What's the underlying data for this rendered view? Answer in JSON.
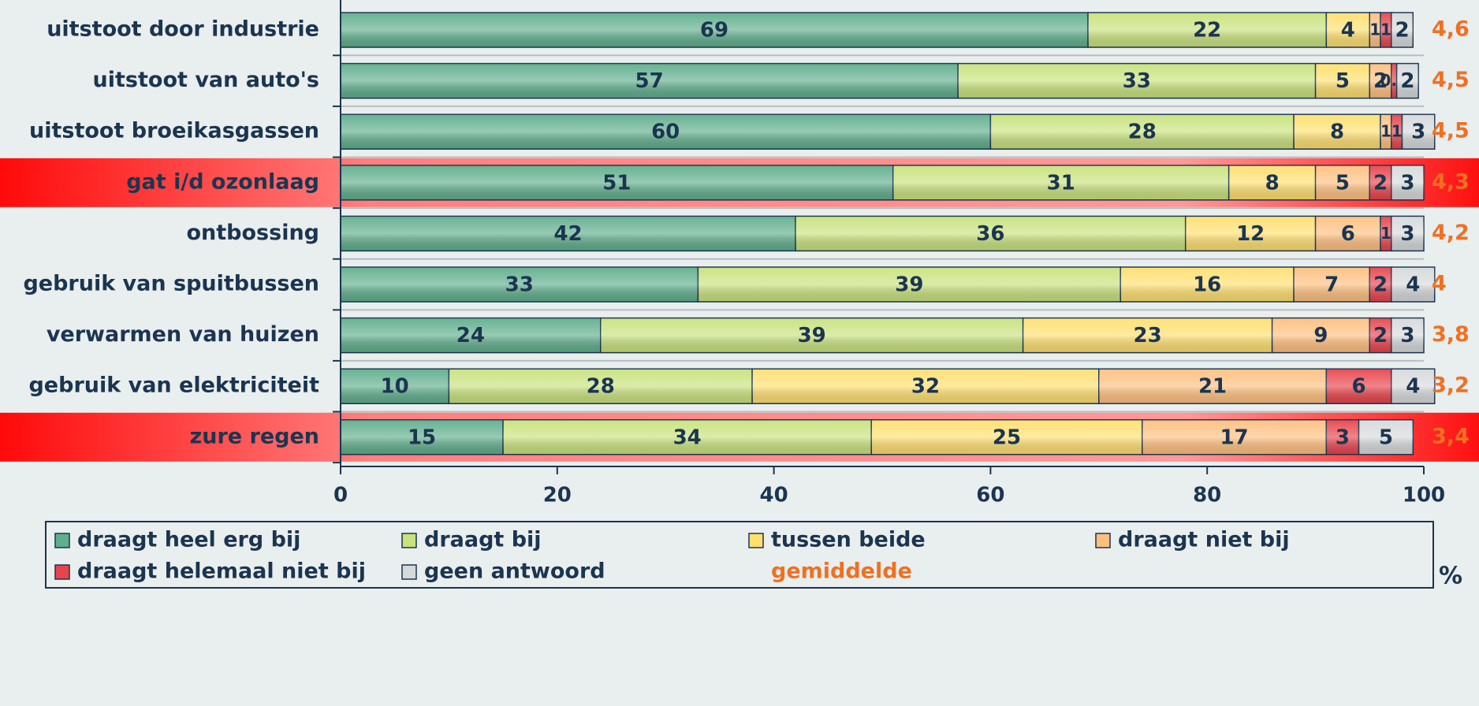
{
  "chart_data": {
    "type": "stacked_barh",
    "categories": [
      "uitstoot door industrie",
      "uitstoot van auto's",
      "uitstoot broeikasgassen",
      "gat i/d ozonlaag",
      "ontbossing",
      "gebruik van spuitbussen",
      "verwarmen van huizen",
      "gebruik van elektriciteit",
      "zure regen"
    ],
    "series": [
      {
        "name": "draagt heel erg bij",
        "color": "#5fae8c",
        "values": [
          69,
          57,
          60,
          51,
          42,
          33,
          24,
          10,
          15
        ]
      },
      {
        "name": "draagt bij",
        "color": "#c8e27c",
        "values": [
          22,
          33,
          28,
          31,
          36,
          39,
          39,
          28,
          34
        ]
      },
      {
        "name": "tussen beide",
        "color": "#ffdf6e",
        "values": [
          4,
          5,
          8,
          8,
          12,
          16,
          23,
          32,
          25
        ]
      },
      {
        "name": "draagt niet bij",
        "color": "#ffbf7e",
        "values": [
          1,
          2,
          1,
          5,
          6,
          7,
          9,
          21,
          17
        ]
      },
      {
        "name": "draagt helemaal niet bij",
        "color": "#e8444c",
        "values": [
          1,
          0.5,
          1,
          2,
          1,
          2,
          2,
          6,
          3
        ]
      },
      {
        "name": "geen antwoord",
        "color": "#d6d9db",
        "values": [
          2,
          2,
          3,
          3,
          3,
          4,
          3,
          4,
          5
        ]
      }
    ],
    "means": {
      "name": "gemiddelde",
      "color": "#f07022",
      "values": [
        4.6,
        4.5,
        4.5,
        4.3,
        4.2,
        4,
        3.8,
        3.2,
        3.4
      ],
      "value_labels": [
        "4,6",
        "4,5",
        "4,5",
        "4,3",
        "4,2",
        "4",
        "3,8",
        "3,2",
        "3,4"
      ]
    },
    "highlighted": [
      3,
      8
    ],
    "xlabel": "%",
    "xlim": [
      0,
      100
    ],
    "xticks": [
      0,
      20,
      40,
      60,
      80,
      100
    ]
  }
}
